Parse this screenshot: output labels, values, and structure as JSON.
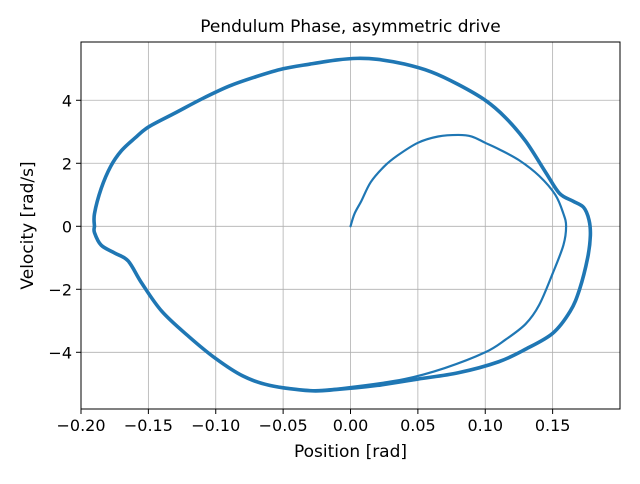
{
  "chart_data": {
    "type": "line",
    "title": "Pendulum Phase, asymmetric drive",
    "xlabel": "Position [rad]",
    "ylabel": "Velocity [rad/s]",
    "xlim": [
      -0.2,
      0.2
    ],
    "ylim": [
      -5.8,
      5.85
    ],
    "grid": true,
    "xticks": [
      -0.2,
      -0.15,
      -0.1,
      -0.05,
      0.0,
      0.05,
      0.1,
      0.15
    ],
    "xtick_labels": [
      "−0.20",
      "−0.15",
      "−0.10",
      "−0.05",
      "0.00",
      "0.05",
      "0.10",
      "0.15"
    ],
    "yticks": [
      -4,
      -2,
      0,
      2,
      4
    ],
    "ytick_labels": [
      "−4",
      "−2",
      "0",
      "2",
      "4"
    ],
    "color": "#1f77b4",
    "series": [
      {
        "transient": [
          [
            0.0,
            0.0
          ],
          [
            0.003,
            0.4
          ],
          [
            0.008,
            0.8
          ],
          [
            0.015,
            1.4
          ],
          [
            0.025,
            1.9
          ],
          [
            0.035,
            2.25
          ],
          [
            0.05,
            2.65
          ],
          [
            0.065,
            2.85
          ],
          [
            0.08,
            2.9
          ],
          [
            0.09,
            2.85
          ],
          [
            0.1,
            2.65
          ],
          [
            0.11,
            2.45
          ],
          [
            0.125,
            2.1
          ],
          [
            0.14,
            1.6
          ],
          [
            0.152,
            1.0
          ],
          [
            0.158,
            0.4
          ],
          [
            0.16,
            0.0
          ],
          [
            0.158,
            -0.6
          ],
          [
            0.15,
            -1.5
          ],
          [
            0.14,
            -2.5
          ],
          [
            0.13,
            -3.1
          ],
          [
            0.115,
            -3.6
          ],
          [
            0.1,
            -4.0
          ],
          [
            0.07,
            -4.5
          ],
          [
            0.04,
            -4.85
          ],
          [
            0.0,
            -5.1
          ],
          [
            -0.03,
            -5.2
          ],
          [
            -0.06,
            -5.05
          ]
        ],
        "limit_cycle": [
          [
            -0.19,
            0.0
          ],
          [
            -0.19,
            0.4
          ],
          [
            -0.185,
            1.2
          ],
          [
            -0.178,
            1.9
          ],
          [
            -0.17,
            2.4
          ],
          [
            -0.16,
            2.8
          ],
          [
            -0.15,
            3.15
          ],
          [
            -0.13,
            3.6
          ],
          [
            -0.11,
            4.05
          ],
          [
            -0.09,
            4.45
          ],
          [
            -0.07,
            4.75
          ],
          [
            -0.05,
            5.0
          ],
          [
            -0.03,
            5.15
          ],
          [
            -0.01,
            5.28
          ],
          [
            0.005,
            5.33
          ],
          [
            0.02,
            5.3
          ],
          [
            0.04,
            5.15
          ],
          [
            0.06,
            4.9
          ],
          [
            0.08,
            4.5
          ],
          [
            0.1,
            4.0
          ],
          [
            0.115,
            3.45
          ],
          [
            0.13,
            2.7
          ],
          [
            0.145,
            1.7
          ],
          [
            0.155,
            1.05
          ],
          [
            0.165,
            0.8
          ],
          [
            0.173,
            0.6
          ],
          [
            0.177,
            0.2
          ],
          [
            0.178,
            -0.3
          ],
          [
            0.176,
            -1.0
          ],
          [
            0.17,
            -2.0
          ],
          [
            0.163,
            -2.7
          ],
          [
            0.15,
            -3.4
          ],
          [
            0.13,
            -3.9
          ],
          [
            0.11,
            -4.3
          ],
          [
            0.08,
            -4.65
          ],
          [
            0.05,
            -4.85
          ],
          [
            0.02,
            -5.05
          ],
          [
            -0.01,
            -5.18
          ],
          [
            -0.03,
            -5.22
          ],
          [
            -0.06,
            -5.05
          ],
          [
            -0.08,
            -4.75
          ],
          [
            -0.1,
            -4.2
          ],
          [
            -0.12,
            -3.5
          ],
          [
            -0.14,
            -2.7
          ],
          [
            -0.155,
            -1.8
          ],
          [
            -0.165,
            -1.1
          ],
          [
            -0.175,
            -0.85
          ],
          [
            -0.185,
            -0.6
          ],
          [
            -0.19,
            -0.2
          ],
          [
            -0.19,
            0.0
          ]
        ]
      }
    ]
  }
}
